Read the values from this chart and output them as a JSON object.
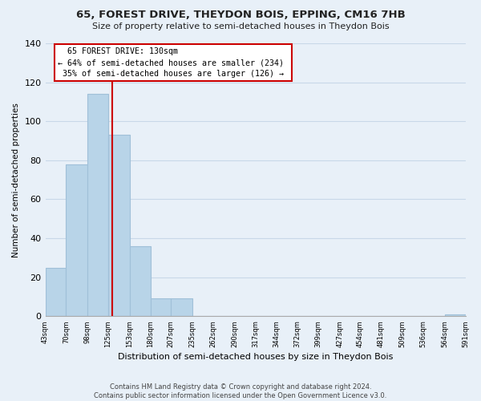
{
  "title": "65, FOREST DRIVE, THEYDON BOIS, EPPING, CM16 7HB",
  "subtitle": "Size of property relative to semi-detached houses in Theydon Bois",
  "xlabel": "Distribution of semi-detached houses by size in Theydon Bois",
  "ylabel": "Number of semi-detached properties",
  "bin_edges": [
    43,
    70,
    98,
    125,
    153,
    180,
    207,
    235,
    262,
    290,
    317,
    344,
    372,
    399,
    427,
    454,
    481,
    509,
    536,
    564,
    591
  ],
  "bar_heights": [
    25,
    78,
    114,
    93,
    36,
    9,
    9,
    0,
    0,
    0,
    0,
    0,
    0,
    0,
    0,
    0,
    0,
    0,
    0,
    1
  ],
  "bar_color": "#b8d4e8",
  "bar_edge_color": "#a0c0d8",
  "property_line_x": 130,
  "property_line_color": "#cc0000",
  "ylim": [
    0,
    140
  ],
  "yticks": [
    0,
    20,
    40,
    60,
    80,
    100,
    120,
    140
  ],
  "annotation_title": "65 FOREST DRIVE: 130sqm",
  "annotation_line1": "← 64% of semi-detached houses are smaller (234)",
  "annotation_line2": "35% of semi-detached houses are larger (126) →",
  "footer_line1": "Contains HM Land Registry data © Crown copyright and database right 2024.",
  "footer_line2": "Contains public sector information licensed under the Open Government Licence v3.0.",
  "background_color": "#e8f0f8",
  "plot_background_color": "#e8f0f8",
  "grid_color": "#c8d8e8"
}
